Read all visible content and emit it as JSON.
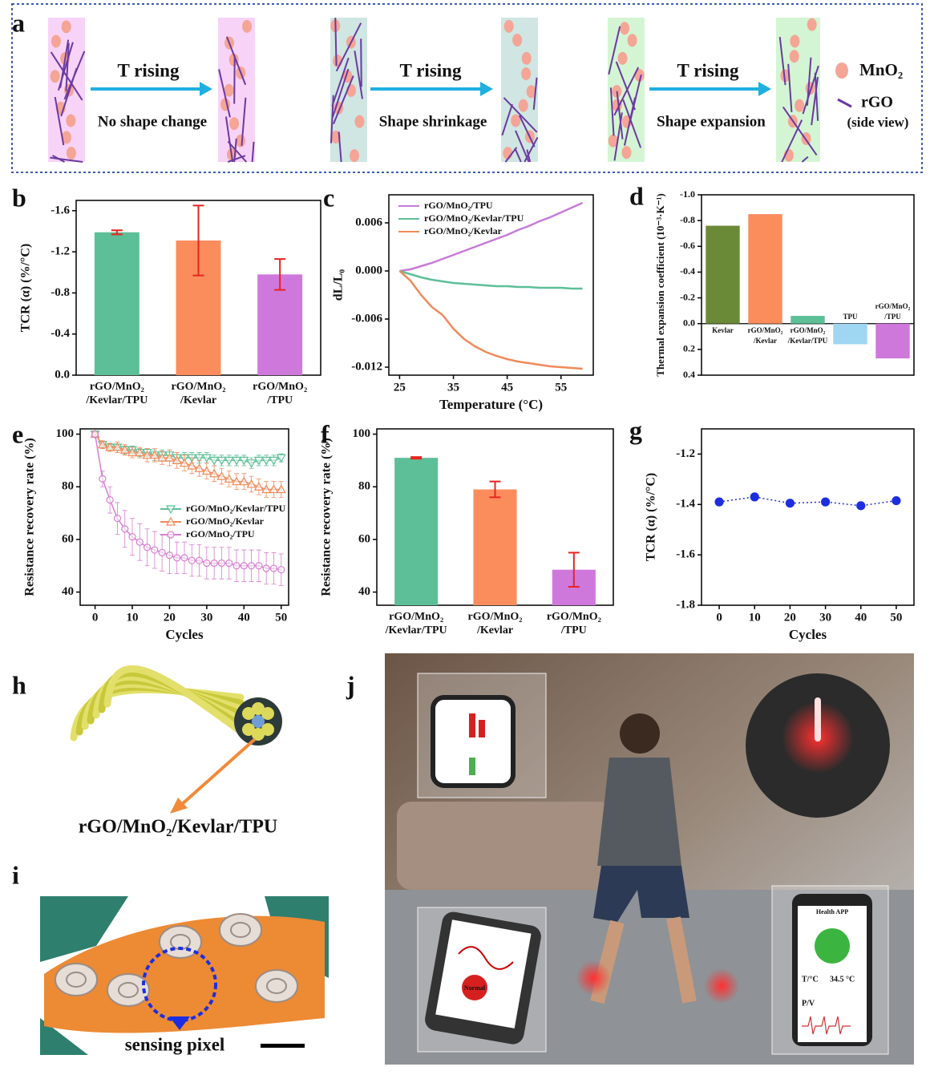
{
  "panel_labels": [
    "a",
    "b",
    "c",
    "d",
    "e",
    "f",
    "g",
    "h",
    "i",
    "j"
  ],
  "schematic": {
    "steps": [
      {
        "label": "T rising",
        "caption": "No shape change"
      },
      {
        "label": "T rising",
        "caption": "Shape shrinkage"
      },
      {
        "label": "T rising",
        "caption": "Shape expansion"
      }
    ],
    "legend": [
      "MnO₂",
      "rGO",
      "(side view)"
    ]
  },
  "fiber": {
    "label": "rGO/MnO₂/Kevlar/TPU"
  },
  "photo": {
    "label": "sensing pixel"
  },
  "scene": {
    "app_title": "Health APP",
    "temp_label": "T/°C",
    "temp_value": "34.5 °C",
    "pulse_label": "P/V",
    "button": "Normal"
  },
  "chart_data": [
    {
      "type": "bar",
      "y_label": "TCR (α) (%/°C)",
      "categories": [
        [
          "rGO/MnO₂",
          "/Kevlar/TPU"
        ],
        [
          "rGO/MnO₂",
          "/Kevlar"
        ],
        [
          "rGO/MnO₂",
          "/TPU"
        ]
      ],
      "values": [
        -1.39,
        -1.31,
        -0.98
      ],
      "errors": [
        0.02,
        0.34,
        0.15
      ],
      "colors": [
        "#5dbf97",
        "#fb8c5c",
        "#cf78dc"
      ],
      "error_color": "#e8241f",
      "ylim": [
        0,
        -1.7
      ],
      "yticks": [
        {
          "value": 0,
          "label": "0.0"
        },
        -0.4,
        -0.8,
        -1.2,
        -1.6
      ]
    },
    {
      "type": "line",
      "x_label": "Temperature (°C)",
      "y_label": "dL/L₀",
      "legend": "upper left",
      "x": [
        25,
        27,
        29,
        31,
        33,
        35,
        37,
        39,
        41,
        43,
        45,
        47,
        49,
        51,
        53,
        55,
        57,
        59
      ],
      "series": [
        {
          "name": "rGO/MnO₂/TPU",
          "color": "#c77ad8",
          "values": [
            0,
            0.0002,
            0.0006,
            0.001,
            0.0015,
            0.002,
            0.0025,
            0.003,
            0.0035,
            0.004,
            0.0045,
            0.0051,
            0.0056,
            0.0062,
            0.0067,
            0.0073,
            0.0079,
            0.0085
          ]
        },
        {
          "name": "rGO/MnO₂/Kevlar/TPU",
          "color": "#5dbf97",
          "values": [
            0,
            -0.0004,
            -0.0008,
            -0.0011,
            -0.0013,
            -0.0015,
            -0.0016,
            -0.0017,
            -0.0018,
            -0.0019,
            -0.0019,
            -0.002,
            -0.002,
            -0.0021,
            -0.0021,
            -0.0021,
            -0.0022,
            -0.0022
          ]
        },
        {
          "name": "rGO/MnO₂/Kevlar",
          "color": "#f08a5a",
          "values": [
            0,
            -0.0012,
            -0.003,
            -0.0045,
            -0.0055,
            -0.0072,
            -0.0085,
            -0.0094,
            -0.0101,
            -0.0106,
            -0.011,
            -0.0113,
            -0.0115,
            -0.0117,
            -0.0119,
            -0.012,
            -0.0121,
            -0.0122
          ]
        }
      ],
      "xlim": [
        23,
        61
      ],
      "xticks": [
        25,
        35,
        45,
        55
      ],
      "ylim": [
        -0.013,
        0.0095
      ],
      "yticks": [
        0.006,
        {
          "value": 0,
          "label": "0.000"
        },
        -0.006,
        -0.012
      ]
    },
    {
      "type": "bar",
      "y_label": "Thermal expansion coefficient (10⁻³·K⁻¹)",
      "categories": [
        [
          "Kevlar"
        ],
        [
          "rGO/MnO₂",
          "/Kevlar"
        ],
        [
          "rGO/MnO₂",
          "/Kevlar/TPU"
        ],
        [
          "TPU"
        ],
        [
          "rGO/MnO₂",
          "/TPU"
        ]
      ],
      "values": [
        -0.76,
        -0.85,
        -0.06,
        0.16,
        0.27
      ],
      "colors": [
        "#6b8a38",
        "#fb8c5c",
        "#5dbf97",
        "#9fd6f2",
        "#cf78dc"
      ],
      "ylim": [
        0.4,
        -1.0
      ],
      "yticks": [
        {
          "value": -1,
          "label": "-1.0"
        },
        -0.8,
        -0.6,
        -0.4,
        -0.2,
        {
          "value": 0,
          "label": "0.0"
        },
        0.2,
        0.4
      ]
    },
    {
      "type": "line",
      "x_label": "Cycles",
      "y_label": "Resistance recovery rate (%)",
      "legend": "center right",
      "x": [
        0,
        2,
        4,
        6,
        8,
        10,
        12,
        14,
        16,
        18,
        20,
        22,
        24,
        26,
        28,
        30,
        32,
        34,
        36,
        38,
        40,
        42,
        44,
        46,
        48,
        50
      ],
      "series": [
        {
          "name": "rGO/MnO₂/Kevlar/TPU",
          "color": "#5dbf97",
          "marker": "triangle-down",
          "values": [
            100,
            96,
            95,
            95,
            94,
            94,
            93,
            93,
            92,
            92,
            92,
            91,
            91,
            91,
            91,
            91,
            90,
            90,
            90,
            90,
            90,
            89,
            90,
            90,
            90,
            91
          ],
          "errors": [
            0.5,
            1,
            1,
            1,
            1.5,
            1.5,
            1.5,
            1.5,
            2,
            2,
            2,
            2,
            2,
            2,
            2,
            2,
            2,
            2,
            2,
            2,
            2,
            2,
            2,
            2,
            2,
            1.5
          ]
        },
        {
          "name": "rGO/MnO₂/Kevlar",
          "color": "#f08a5a",
          "marker": "triangle-up",
          "values": [
            100,
            96,
            95,
            95,
            94,
            93,
            93,
            92,
            92,
            91,
            91,
            90,
            89,
            88,
            87,
            86,
            85,
            84,
            83,
            82,
            82,
            81,
            80,
            79,
            79,
            79
          ],
          "errors": [
            0.5,
            1.5,
            1.5,
            2,
            2,
            2,
            2,
            2.5,
            2.5,
            2.5,
            3,
            3,
            3,
            3,
            3,
            3,
            3,
            3,
            3,
            3,
            3,
            3,
            3,
            3,
            3,
            3
          ]
        },
        {
          "name": "rGO/MnO₂/TPU",
          "color": "#d67fd0",
          "marker": "circle",
          "values": [
            100,
            83,
            75,
            68,
            64,
            61,
            59,
            57,
            56,
            55,
            54,
            53,
            53,
            52,
            52,
            51,
            51,
            51,
            51,
            50,
            50,
            50,
            50,
            49,
            49,
            48.5
          ],
          "errors": [
            1,
            3,
            5,
            6,
            7,
            7,
            7,
            7,
            7,
            7,
            7,
            6,
            6,
            6,
            6,
            6,
            6,
            6,
            6,
            6,
            6,
            6,
            6,
            6,
            6,
            6
          ]
        }
      ],
      "xlim": [
        -4,
        52
      ],
      "xticks": [
        0,
        10,
        20,
        30,
        40,
        50
      ],
      "ylim": [
        35,
        102
      ],
      "yticks": [
        40,
        60,
        80,
        100
      ]
    },
    {
      "type": "bar",
      "y_label": "Resistance recovery rate (%)",
      "categories": [
        [
          "rGO/MnO₂",
          "/Kevlar/TPU"
        ],
        [
          "rGO/MnO₂",
          "/Kevlar"
        ],
        [
          "rGO/MnO₂",
          "/TPU"
        ]
      ],
      "values": [
        91,
        79,
        48.5
      ],
      "errors": [
        0.3,
        3,
        6.5
      ],
      "colors": [
        "#5dbf97",
        "#fb8c5c",
        "#cf78dc"
      ],
      "error_color": "#e8241f",
      "ylim": [
        35,
        102
      ],
      "yticks": [
        40,
        60,
        80,
        100
      ]
    },
    {
      "type": "line",
      "x_label": "Cycles",
      "y_label": "TCR (α) (%/°C)",
      "x": [
        0,
        10,
        20,
        30,
        40,
        50
      ],
      "series": [
        {
          "color": "#1d2ee0",
          "marker": "circle",
          "marker_filled": true,
          "linestyle": "dotted",
          "values": [
            -1.39,
            -1.37,
            -1.395,
            -1.39,
            -1.405,
            -1.385
          ]
        }
      ],
      "xlim": [
        -5,
        55
      ],
      "xticks": [
        0,
        10,
        20,
        30,
        40,
        50
      ],
      "ylim": [
        -1.8,
        -1.1
      ],
      "yticks": [
        -1.2,
        -1.4,
        -1.6,
        -1.8
      ]
    }
  ]
}
